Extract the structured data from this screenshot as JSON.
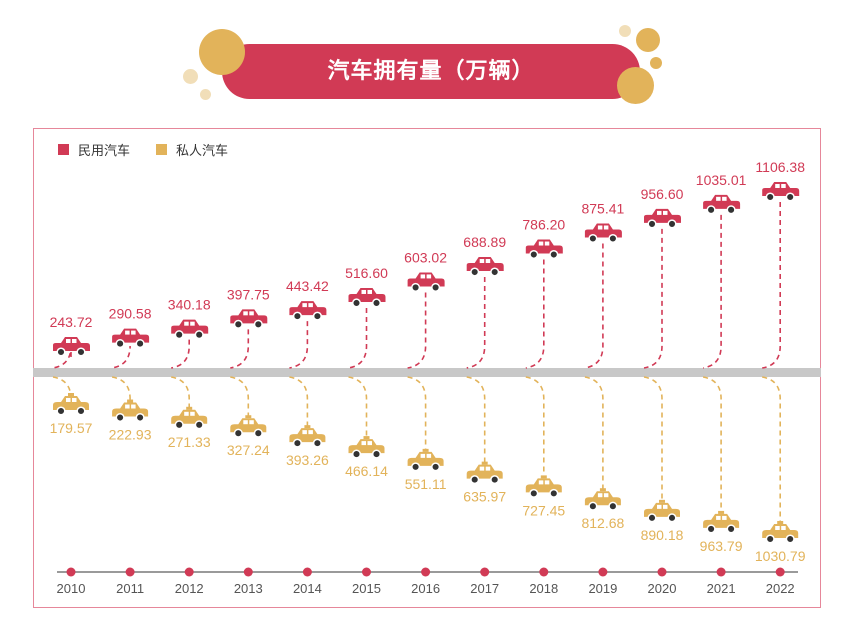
{
  "title": "汽车拥有量（万辆）",
  "legend": {
    "series_1": "民用汽车",
    "series_2": "私人汽车"
  },
  "colors": {
    "civil": "#d13a55",
    "private": "#e2b35a",
    "timeline": "#9a9a9a",
    "band": "#c8c8c8",
    "bubble": "#e2b35a",
    "bubble_light": "#f1deb8"
  },
  "icons": {
    "civil": "red-car-icon",
    "private": "yellow-taxi-icon"
  },
  "chart_data": {
    "type": "line",
    "title": "汽车拥有量（万辆）",
    "categories": [
      "2010",
      "2011",
      "2012",
      "2013",
      "2014",
      "2015",
      "2016",
      "2017",
      "2018",
      "2019",
      "2020",
      "2021",
      "2022"
    ],
    "series": [
      {
        "name": "民用汽车",
        "values": [
          243.72,
          290.58,
          340.18,
          397.75,
          443.42,
          516.6,
          603.02,
          688.89,
          786.2,
          875.41,
          956.6,
          1035.01,
          1106.38
        ],
        "labels": [
          "243.72",
          "290.58",
          "340.18",
          "397.75",
          "443.42",
          "516.60",
          "603.02",
          "688.89",
          "786.20",
          "875.41",
          "956.60",
          "1035.01",
          "1106.38"
        ]
      },
      {
        "name": "私人汽车",
        "values": [
          179.57,
          222.93,
          271.33,
          327.24,
          393.26,
          466.14,
          551.11,
          635.97,
          727.45,
          812.68,
          890.18,
          963.79,
          1030.79
        ],
        "labels": [
          "179.57",
          "222.93",
          "271.33",
          "327.24",
          "393.26",
          "466.14",
          "551.11",
          "635.97",
          "727.45",
          "812.68",
          "890.18",
          "963.79",
          "1030.79"
        ]
      }
    ],
    "legend_position": "top-left",
    "grid": false
  }
}
